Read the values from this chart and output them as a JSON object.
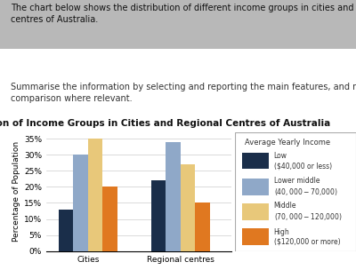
{
  "title": "Distribution of Income Groups in Cities and Regional Centres of Australia",
  "categories": [
    "Cities",
    "Regional centres"
  ],
  "series": [
    {
      "label": "Low\n($40,000 or less)",
      "color": "#1a2e4a",
      "values": [
        13,
        22
      ]
    },
    {
      "label": "Lower middle\n($40,000-$70,000)",
      "color": "#8fa8c8",
      "values": [
        30,
        34
      ]
    },
    {
      "label": "Middle\n($70,000-$120,000)",
      "color": "#e8c87a",
      "values": [
        35,
        27
      ]
    },
    {
      "label": "High\n($120,000 or more)",
      "color": "#e07820",
      "values": [
        20,
        15
      ]
    }
  ],
  "ylabel": "Percentage of Population",
  "ylim": [
    0,
    37
  ],
  "yticks": [
    0,
    5,
    10,
    15,
    20,
    25,
    30,
    35
  ],
  "ytick_labels": [
    "0%",
    "5%",
    "10%",
    "15%",
    "20%",
    "25%",
    "30%",
    "35%"
  ],
  "legend_title": "Average Yearly Income",
  "background_color": "#ffffff",
  "text_block_1": "The chart below shows the distribution of different income groups in cities and regional\ncentres of Australia.",
  "text_block_2": "Summarise the information by selecting and reporting the main features, and make a\ncomparison where relevant.",
  "text_bg_color": "#b8b8b8",
  "fig_bg_color": "#ffffff",
  "title_fontsize": 7.5,
  "tick_fontsize": 6.5,
  "ylabel_fontsize": 6.5
}
